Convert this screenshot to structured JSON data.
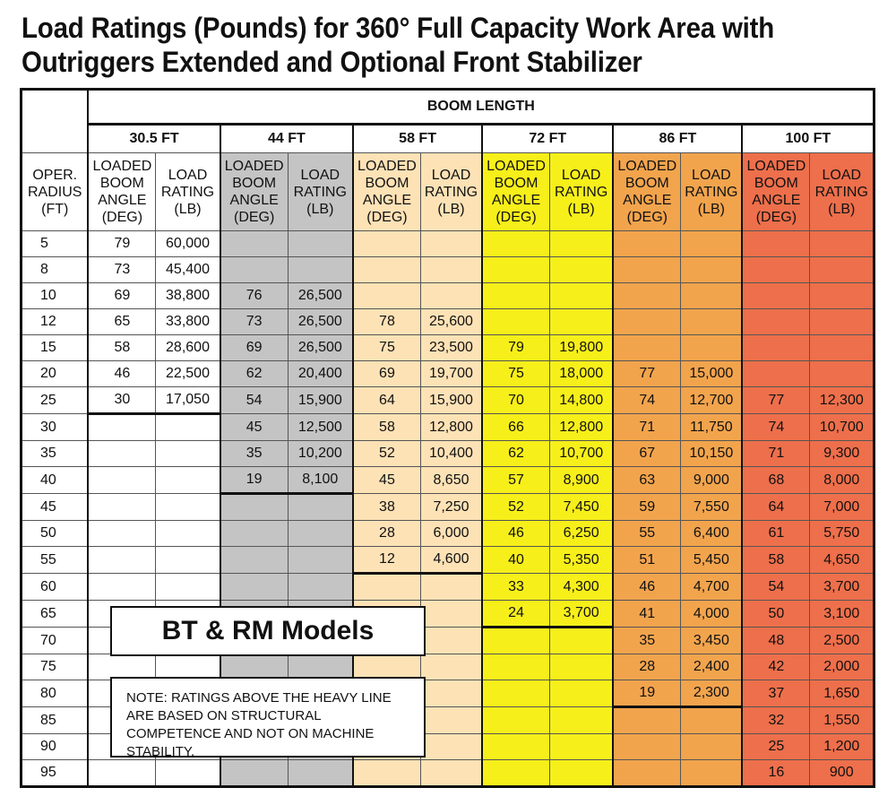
{
  "title": {
    "line1": "Load Ratings (Pounds) for 360° Full Capacity Work Area with",
    "line2": "Outriggers Extended and Optional Front Stabilizer"
  },
  "header": {
    "boom_length": "BOOM LENGTH",
    "radius": "OPER. RADIUS (FT)",
    "angle": "LOADED BOOM ANGLE (DEG)",
    "rating": "LOAD RATING (LB)"
  },
  "colors": {
    "c30": "#ffffff",
    "c44": "#c4c4c4",
    "c58": "#fde2b6",
    "c72": "#f7ef1a",
    "c86": "#f2a44d",
    "c100": "#ee6f4b"
  },
  "boom_lengths": [
    "30.5 FT",
    "44 FT",
    "58 FT",
    "72 FT",
    "86 FT",
    "100 FT"
  ],
  "radii": [
    "5",
    "8",
    "10",
    "12",
    "15",
    "20",
    "25",
    "30",
    "35",
    "40",
    "45",
    "50",
    "55",
    "60",
    "65",
    "70",
    "75",
    "80",
    "85",
    "90",
    "95"
  ],
  "table": [
    [
      [
        "79",
        "60,000"
      ],
      [
        "",
        ""
      ],
      [
        "",
        ""
      ],
      [
        "",
        ""
      ],
      [
        "",
        ""
      ],
      [
        "",
        ""
      ]
    ],
    [
      [
        "73",
        "45,400"
      ],
      [
        "",
        ""
      ],
      [
        "",
        ""
      ],
      [
        "",
        ""
      ],
      [
        "",
        ""
      ],
      [
        "",
        ""
      ]
    ],
    [
      [
        "69",
        "38,800"
      ],
      [
        "76",
        "26,500"
      ],
      [
        "",
        ""
      ],
      [
        "",
        ""
      ],
      [
        "",
        ""
      ],
      [
        "",
        ""
      ]
    ],
    [
      [
        "65",
        "33,800"
      ],
      [
        "73",
        "26,500"
      ],
      [
        "78",
        "25,600"
      ],
      [
        "",
        ""
      ],
      [
        "",
        ""
      ],
      [
        "",
        ""
      ]
    ],
    [
      [
        "58",
        "28,600"
      ],
      [
        "69",
        "26,500"
      ],
      [
        "75",
        "23,500"
      ],
      [
        "79",
        "19,800"
      ],
      [
        "",
        ""
      ],
      [
        "",
        ""
      ]
    ],
    [
      [
        "46",
        "22,500"
      ],
      [
        "62",
        "20,400"
      ],
      [
        "69",
        "19,700"
      ],
      [
        "75",
        "18,000"
      ],
      [
        "77",
        "15,000"
      ],
      [
        "",
        ""
      ]
    ],
    [
      [
        "30",
        "17,050"
      ],
      [
        "54",
        "15,900"
      ],
      [
        "64",
        "15,900"
      ],
      [
        "70",
        "14,800"
      ],
      [
        "74",
        "12,700"
      ],
      [
        "77",
        "12,300"
      ]
    ],
    [
      [
        "",
        ""
      ],
      [
        "45",
        "12,500"
      ],
      [
        "58",
        "12,800"
      ],
      [
        "66",
        "12,800"
      ],
      [
        "71",
        "11,750"
      ],
      [
        "74",
        "10,700"
      ]
    ],
    [
      [
        "",
        ""
      ],
      [
        "35",
        "10,200"
      ],
      [
        "52",
        "10,400"
      ],
      [
        "62",
        "10,700"
      ],
      [
        "67",
        "10,150"
      ],
      [
        "71",
        "9,300"
      ]
    ],
    [
      [
        "",
        ""
      ],
      [
        "19",
        "8,100"
      ],
      [
        "45",
        "8,650"
      ],
      [
        "57",
        "8,900"
      ],
      [
        "63",
        "9,000"
      ],
      [
        "68",
        "8,000"
      ]
    ],
    [
      [
        "",
        ""
      ],
      [
        "",
        ""
      ],
      [
        "38",
        "7,250"
      ],
      [
        "52",
        "7,450"
      ],
      [
        "59",
        "7,550"
      ],
      [
        "64",
        "7,000"
      ]
    ],
    [
      [
        "",
        ""
      ],
      [
        "",
        ""
      ],
      [
        "28",
        "6,000"
      ],
      [
        "46",
        "6,250"
      ],
      [
        "55",
        "6,400"
      ],
      [
        "61",
        "5,750"
      ]
    ],
    [
      [
        "",
        ""
      ],
      [
        "",
        ""
      ],
      [
        "12",
        "4,600"
      ],
      [
        "40",
        "5,350"
      ],
      [
        "51",
        "5,450"
      ],
      [
        "58",
        "4,650"
      ]
    ],
    [
      [
        "",
        ""
      ],
      [
        "",
        ""
      ],
      [
        "",
        ""
      ],
      [
        "33",
        "4,300"
      ],
      [
        "46",
        "4,700"
      ],
      [
        "54",
        "3,700"
      ]
    ],
    [
      [
        "",
        ""
      ],
      [
        "",
        ""
      ],
      [
        "",
        ""
      ],
      [
        "24",
        "3,700"
      ],
      [
        "41",
        "4,000"
      ],
      [
        "50",
        "3,100"
      ]
    ],
    [
      [
        "",
        ""
      ],
      [
        "",
        ""
      ],
      [
        "",
        ""
      ],
      [
        "",
        ""
      ],
      [
        "35",
        "3,450"
      ],
      [
        "48",
        "2,500"
      ]
    ],
    [
      [
        "",
        ""
      ],
      [
        "",
        ""
      ],
      [
        "",
        ""
      ],
      [
        "",
        ""
      ],
      [
        "28",
        "2,400"
      ],
      [
        "42",
        "2,000"
      ]
    ],
    [
      [
        "",
        ""
      ],
      [
        "",
        ""
      ],
      [
        "",
        ""
      ],
      [
        "",
        ""
      ],
      [
        "19",
        "2,300"
      ],
      [
        "37",
        "1,650"
      ]
    ],
    [
      [
        "",
        ""
      ],
      [
        "",
        ""
      ],
      [
        "",
        ""
      ],
      [
        "",
        ""
      ],
      [
        "",
        ""
      ],
      [
        "32",
        "1,550"
      ]
    ],
    [
      [
        "",
        ""
      ],
      [
        "",
        ""
      ],
      [
        "",
        ""
      ],
      [
        "",
        ""
      ],
      [
        "",
        ""
      ],
      [
        "25",
        "1,200"
      ]
    ],
    [
      [
        "",
        ""
      ],
      [
        "",
        ""
      ],
      [
        "",
        ""
      ],
      [
        "",
        ""
      ],
      [
        "",
        ""
      ],
      [
        "16",
        "900"
      ]
    ]
  ],
  "heavy_line_after_row": [
    6,
    9,
    12,
    14,
    17,
    20
  ],
  "overlay": {
    "models": "BT & RM Models",
    "note": "NOTE: RATINGS ABOVE THE HEAVY LINE ARE BASED ON STRUCTURAL COMPETENCE AND NOT ON MACHINE STABILITY."
  }
}
